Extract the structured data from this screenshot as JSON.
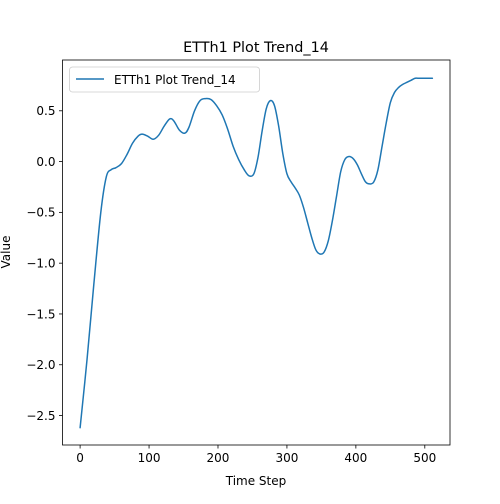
{
  "chart_data": {
    "type": "line",
    "title": "ETTh1 Plot Trend_14",
    "xlabel": "Time Step",
    "ylabel": "Value",
    "xlim": [
      -25.55,
      536.55
    ],
    "ylim": [
      -2.79,
      1.0
    ],
    "xticks": [
      0,
      100,
      200,
      300,
      400,
      500
    ],
    "yticks": [
      -2.5,
      -2.0,
      -1.5,
      -1.0,
      -0.5,
      0.0,
      0.5
    ],
    "xtick_labels": [
      "0",
      "100",
      "200",
      "300",
      "400",
      "500"
    ],
    "ytick_labels": [
      "−2.5",
      "−2.0",
      "−1.5",
      "−1.0",
      "−0.5",
      "0.0",
      "0.5"
    ],
    "grid": false,
    "legend_position": "top-left",
    "series": [
      {
        "name": "ETTh1 Plot Trend_14",
        "color": "#1f77b4",
        "x": [
          0,
          10,
          20,
          30,
          38,
          45,
          52,
          60,
          68,
          76,
          84,
          90,
          98,
          106,
          114,
          122,
          130,
          136,
          144,
          152,
          158,
          166,
          174,
          182,
          190,
          198,
          206,
          214,
          222,
          230,
          238,
          245,
          252,
          258,
          264,
          270,
          276,
          282,
          288,
          294,
          300,
          306,
          312,
          318,
          324,
          330,
          336,
          342,
          348,
          354,
          360,
          366,
          372,
          378,
          384,
          390,
          396,
          402,
          408,
          414,
          420,
          426,
          432,
          438,
          444,
          450,
          456,
          462,
          468,
          474,
          480,
          486,
          492,
          498,
          504,
          511
        ],
        "y": [
          -2.62,
          -1.95,
          -1.2,
          -0.5,
          -0.15,
          -0.08,
          -0.06,
          -0.02,
          0.07,
          0.18,
          0.25,
          0.27,
          0.25,
          0.22,
          0.26,
          0.35,
          0.42,
          0.4,
          0.31,
          0.28,
          0.34,
          0.5,
          0.6,
          0.62,
          0.61,
          0.55,
          0.46,
          0.32,
          0.15,
          0.02,
          -0.08,
          -0.14,
          -0.12,
          0.04,
          0.3,
          0.52,
          0.6,
          0.55,
          0.35,
          0.08,
          -0.12,
          -0.2,
          -0.26,
          -0.33,
          -0.45,
          -0.6,
          -0.75,
          -0.87,
          -0.91,
          -0.89,
          -0.78,
          -0.58,
          -0.34,
          -0.1,
          0.02,
          0.05,
          0.03,
          -0.03,
          -0.12,
          -0.2,
          -0.22,
          -0.2,
          -0.08,
          0.15,
          0.38,
          0.58,
          0.68,
          0.73,
          0.76,
          0.78,
          0.8,
          0.82,
          0.82,
          0.82,
          0.82,
          0.82
        ]
      }
    ]
  }
}
